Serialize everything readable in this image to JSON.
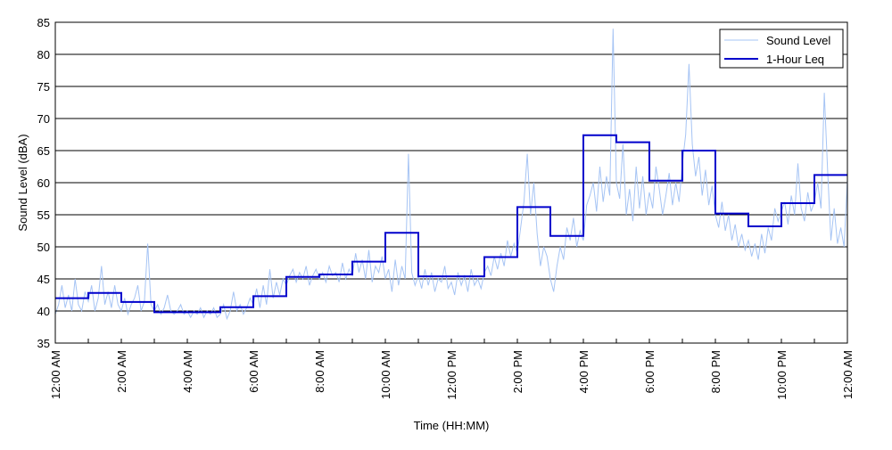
{
  "chart_data": {
    "type": "line",
    "title": "",
    "xlabel": "Time (HH:MM)",
    "ylabel": "Sound Level (dBA)",
    "xlim": [
      0,
      24
    ],
    "ylim": [
      35,
      85
    ],
    "grid": "horizontal",
    "legend_position": "top-right",
    "x_ticks": [
      {
        "label": "12:00 AM",
        "value": 0
      },
      {
        "label": "2:00 AM",
        "value": 2
      },
      {
        "label": "4:00 AM",
        "value": 4
      },
      {
        "label": "6:00 AM",
        "value": 6
      },
      {
        "label": "8:00 AM",
        "value": 8
      },
      {
        "label": "10:00 AM",
        "value": 10
      },
      {
        "label": "12:00 PM",
        "value": 12
      },
      {
        "label": "2:00 PM",
        "value": 14
      },
      {
        "label": "4:00 PM",
        "value": 16
      },
      {
        "label": "6:00 PM",
        "value": 18
      },
      {
        "label": "8:00 PM",
        "value": 20
      },
      {
        "label": "10:00 PM",
        "value": 22
      },
      {
        "label": "12:00 AM",
        "value": 24
      }
    ],
    "y_ticks": [
      35,
      40,
      45,
      50,
      55,
      60,
      65,
      70,
      75,
      80,
      85
    ],
    "series": [
      {
        "name": "Sound Level",
        "color": "#a6c4f4",
        "style": "thin-line",
        "points": [
          [
            0.0,
            39.5
          ],
          [
            0.1,
            41.0
          ],
          [
            0.2,
            44.0
          ],
          [
            0.3,
            40.5
          ],
          [
            0.4,
            42.5
          ],
          [
            0.5,
            40.0
          ],
          [
            0.6,
            45.0
          ],
          [
            0.7,
            41.0
          ],
          [
            0.8,
            40.0
          ],
          [
            0.9,
            43.0
          ],
          [
            1.0,
            41.5
          ],
          [
            1.1,
            44.0
          ],
          [
            1.2,
            40.0
          ],
          [
            1.3,
            42.0
          ],
          [
            1.4,
            47.0
          ],
          [
            1.5,
            41.0
          ],
          [
            1.6,
            43.0
          ],
          [
            1.7,
            40.5
          ],
          [
            1.8,
            44.0
          ],
          [
            1.9,
            41.0
          ],
          [
            2.0,
            40.0
          ],
          [
            2.1,
            42.0
          ],
          [
            2.2,
            39.5
          ],
          [
            2.3,
            41.0
          ],
          [
            2.4,
            42.0
          ],
          [
            2.5,
            44.0
          ],
          [
            2.6,
            40.0
          ],
          [
            2.7,
            41.5
          ],
          [
            2.8,
            50.5
          ],
          [
            2.9,
            41.0
          ],
          [
            3.0,
            40.0
          ],
          [
            3.1,
            41.0
          ],
          [
            3.2,
            39.5
          ],
          [
            3.3,
            40.5
          ],
          [
            3.4,
            42.5
          ],
          [
            3.5,
            40.0
          ],
          [
            3.6,
            39.5
          ],
          [
            3.7,
            40.0
          ],
          [
            3.8,
            41.0
          ],
          [
            3.9,
            39.5
          ],
          [
            4.0,
            40.0
          ],
          [
            4.1,
            39.0
          ],
          [
            4.2,
            40.0
          ],
          [
            4.3,
            39.5
          ],
          [
            4.4,
            40.5
          ],
          [
            4.5,
            39.0
          ],
          [
            4.6,
            40.0
          ],
          [
            4.7,
            39.5
          ],
          [
            4.8,
            40.5
          ],
          [
            4.9,
            39.0
          ],
          [
            5.0,
            39.5
          ],
          [
            5.1,
            41.0
          ],
          [
            5.2,
            38.8
          ],
          [
            5.3,
            40.0
          ],
          [
            5.4,
            43.0
          ],
          [
            5.5,
            40.0
          ],
          [
            5.6,
            41.0
          ],
          [
            5.7,
            39.5
          ],
          [
            5.8,
            40.5
          ],
          [
            5.9,
            42.0
          ],
          [
            6.0,
            41.0
          ],
          [
            6.1,
            43.5
          ],
          [
            6.2,
            40.5
          ],
          [
            6.3,
            44.0
          ],
          [
            6.4,
            41.0
          ],
          [
            6.5,
            46.5
          ],
          [
            6.6,
            42.0
          ],
          [
            6.7,
            44.5
          ],
          [
            6.8,
            42.5
          ],
          [
            6.9,
            45.0
          ],
          [
            7.0,
            44.0
          ],
          [
            7.1,
            45.5
          ],
          [
            7.2,
            46.5
          ],
          [
            7.3,
            44.5
          ],
          [
            7.4,
            46.0
          ],
          [
            7.5,
            45.0
          ],
          [
            7.6,
            47.0
          ],
          [
            7.7,
            44.0
          ],
          [
            7.8,
            45.5
          ],
          [
            7.9,
            46.5
          ],
          [
            8.0,
            45.0
          ],
          [
            8.1,
            46.0
          ],
          [
            8.2,
            44.5
          ],
          [
            8.3,
            47.0
          ],
          [
            8.4,
            45.5
          ],
          [
            8.5,
            46.0
          ],
          [
            8.6,
            44.5
          ],
          [
            8.7,
            47.5
          ],
          [
            8.8,
            45.0
          ],
          [
            8.9,
            46.5
          ],
          [
            9.0,
            45.5
          ],
          [
            9.1,
            49.0
          ],
          [
            9.2,
            46.0
          ],
          [
            9.3,
            48.0
          ],
          [
            9.4,
            45.0
          ],
          [
            9.5,
            49.5
          ],
          [
            9.6,
            44.5
          ],
          [
            9.7,
            47.0
          ],
          [
            9.8,
            46.0
          ],
          [
            9.9,
            48.5
          ],
          [
            10.0,
            45.0
          ],
          [
            10.1,
            46.5
          ],
          [
            10.2,
            43.0
          ],
          [
            10.3,
            48.0
          ],
          [
            10.4,
            44.0
          ],
          [
            10.5,
            47.0
          ],
          [
            10.6,
            45.0
          ],
          [
            10.7,
            64.5
          ],
          [
            10.8,
            46.0
          ],
          [
            10.9,
            44.0
          ],
          [
            11.0,
            45.5
          ],
          [
            11.1,
            43.5
          ],
          [
            11.2,
            46.5
          ],
          [
            11.3,
            44.0
          ],
          [
            11.4,
            46.0
          ],
          [
            11.5,
            43.0
          ],
          [
            11.6,
            45.0
          ],
          [
            11.7,
            44.5
          ],
          [
            11.8,
            47.0
          ],
          [
            11.9,
            43.5
          ],
          [
            12.0,
            44.5
          ],
          [
            12.1,
            42.5
          ],
          [
            12.2,
            46.0
          ],
          [
            12.3,
            44.0
          ],
          [
            12.4,
            45.5
          ],
          [
            12.5,
            43.0
          ],
          [
            12.6,
            46.5
          ],
          [
            12.7,
            44.0
          ],
          [
            12.8,
            45.0
          ],
          [
            12.9,
            43.5
          ],
          [
            13.0,
            46.0
          ],
          [
            13.1,
            47.0
          ],
          [
            13.2,
            45.5
          ],
          [
            13.3,
            48.5
          ],
          [
            13.4,
            46.5
          ],
          [
            13.5,
            49.0
          ],
          [
            13.6,
            47.0
          ],
          [
            13.7,
            51.0
          ],
          [
            13.8,
            48.5
          ],
          [
            13.9,
            50.5
          ],
          [
            14.0,
            49.0
          ],
          [
            14.1,
            53.0
          ],
          [
            14.2,
            57.0
          ],
          [
            14.3,
            64.5
          ],
          [
            14.4,
            55.0
          ],
          [
            14.5,
            60.0
          ],
          [
            14.6,
            52.0
          ],
          [
            14.7,
            47.0
          ],
          [
            14.8,
            50.0
          ],
          [
            14.9,
            48.5
          ],
          [
            15.0,
            45.0
          ],
          [
            15.1,
            43.0
          ],
          [
            15.2,
            47.0
          ],
          [
            15.3,
            50.0
          ],
          [
            15.4,
            48.0
          ],
          [
            15.5,
            53.0
          ],
          [
            15.6,
            51.0
          ],
          [
            15.7,
            54.5
          ],
          [
            15.8,
            50.0
          ],
          [
            15.9,
            52.5
          ],
          [
            16.0,
            51.0
          ],
          [
            16.1,
            56.5
          ],
          [
            16.2,
            58.0
          ],
          [
            16.3,
            60.0
          ],
          [
            16.4,
            55.5
          ],
          [
            16.5,
            62.5
          ],
          [
            16.6,
            57.0
          ],
          [
            16.7,
            61.0
          ],
          [
            16.8,
            58.0
          ],
          [
            16.9,
            84.0
          ],
          [
            17.0,
            60.0
          ],
          [
            17.1,
            57.5
          ],
          [
            17.2,
            66.0
          ],
          [
            17.3,
            55.0
          ],
          [
            17.4,
            59.0
          ],
          [
            17.5,
            54.0
          ],
          [
            17.6,
            62.5
          ],
          [
            17.7,
            56.0
          ],
          [
            17.8,
            61.0
          ],
          [
            17.9,
            55.0
          ],
          [
            18.0,
            58.5
          ],
          [
            18.1,
            56.0
          ],
          [
            18.2,
            62.5
          ],
          [
            18.3,
            59.0
          ],
          [
            18.4,
            55.0
          ],
          [
            18.5,
            58.0
          ],
          [
            18.6,
            61.5
          ],
          [
            18.7,
            56.5
          ],
          [
            18.8,
            60.0
          ],
          [
            18.9,
            57.0
          ],
          [
            19.0,
            63.0
          ],
          [
            19.1,
            67.5
          ],
          [
            19.2,
            78.5
          ],
          [
            19.3,
            66.0
          ],
          [
            19.4,
            61.0
          ],
          [
            19.5,
            64.0
          ],
          [
            19.6,
            58.0
          ],
          [
            19.7,
            62.0
          ],
          [
            19.8,
            56.5
          ],
          [
            19.9,
            59.5
          ],
          [
            20.0,
            55.0
          ],
          [
            20.1,
            53.0
          ],
          [
            20.2,
            57.0
          ],
          [
            20.3,
            52.5
          ],
          [
            20.4,
            55.0
          ],
          [
            20.5,
            51.0
          ],
          [
            20.6,
            53.5
          ],
          [
            20.7,
            50.0
          ],
          [
            20.8,
            52.0
          ],
          [
            20.9,
            49.5
          ],
          [
            21.0,
            51.0
          ],
          [
            21.1,
            48.5
          ],
          [
            21.2,
            50.5
          ],
          [
            21.3,
            48.0
          ],
          [
            21.4,
            52.0
          ],
          [
            21.5,
            49.0
          ],
          [
            21.6,
            53.0
          ],
          [
            21.7,
            51.0
          ],
          [
            21.8,
            56.0
          ],
          [
            21.9,
            54.0
          ],
          [
            22.0,
            55.5
          ],
          [
            22.1,
            57.0
          ],
          [
            22.2,
            53.5
          ],
          [
            22.3,
            58.0
          ],
          [
            22.4,
            55.0
          ],
          [
            22.5,
            63.0
          ],
          [
            22.6,
            56.0
          ],
          [
            22.7,
            54.0
          ],
          [
            22.8,
            58.5
          ],
          [
            22.9,
            55.5
          ],
          [
            23.0,
            57.0
          ],
          [
            23.1,
            60.0
          ],
          [
            23.2,
            56.0
          ],
          [
            23.3,
            74.0
          ],
          [
            23.4,
            62.0
          ],
          [
            23.5,
            51.0
          ],
          [
            23.6,
            56.0
          ],
          [
            23.7,
            50.5
          ],
          [
            23.8,
            53.0
          ],
          [
            23.9,
            50.0
          ],
          [
            24.0,
            60.5
          ]
        ]
      },
      {
        "name": "1-Hour Leq",
        "color": "#0000cc",
        "style": "step",
        "hour_values": [
          42.0,
          42.8,
          41.4,
          39.8,
          39.8,
          40.6,
          42.3,
          45.3,
          45.7,
          47.7,
          52.2,
          45.4,
          45.4,
          48.4,
          56.2,
          51.7,
          67.4,
          66.3,
          60.3,
          65.0,
          55.2,
          53.2,
          56.8,
          61.2
        ]
      }
    ]
  }
}
